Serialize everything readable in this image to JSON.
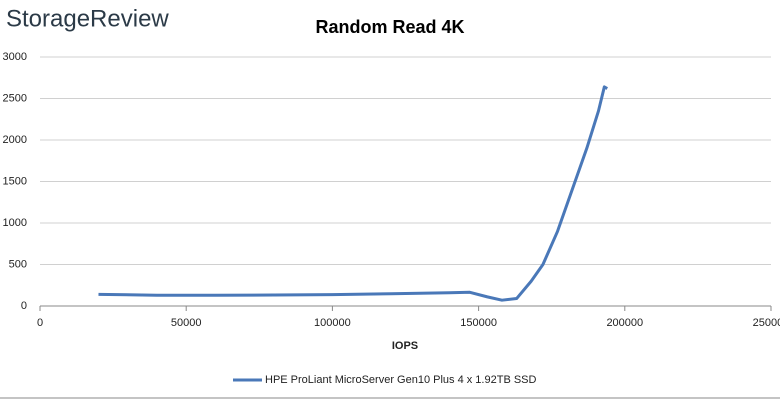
{
  "logo": "StorageReview",
  "chart_data": {
    "type": "line",
    "title": "Random Read 4K",
    "x_label": "IOPS",
    "xlim": [
      0,
      250000
    ],
    "xticks": [
      0,
      50000,
      100000,
      150000,
      200000,
      250000
    ],
    "ylim": [
      0,
      3000
    ],
    "yticks": [
      0,
      500,
      1000,
      1500,
      2000,
      2500,
      3000
    ],
    "grid": true,
    "x": [
      20000,
      40000,
      60000,
      80000,
      100000,
      120000,
      140000,
      147000,
      153000,
      158000,
      163000,
      168000,
      172000,
      177000,
      182000,
      187000,
      191000,
      193000,
      194000
    ],
    "series": [
      {
        "name": "HPE ProLiant MicroServer Gen10 Plus 4 x 1.92TB SSD",
        "color": "#4a78b8",
        "values": [
          140,
          130,
          130,
          132,
          137,
          148,
          160,
          165,
          110,
          70,
          90,
          300,
          500,
          900,
          1400,
          1900,
          2350,
          2640,
          2620
        ]
      }
    ],
    "legend": "bottom"
  }
}
